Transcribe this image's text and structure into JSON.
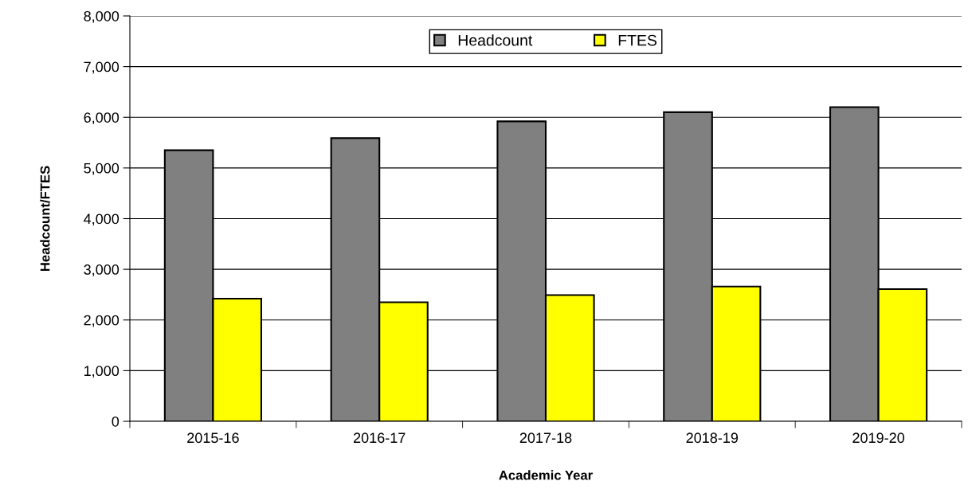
{
  "chart_data": {
    "type": "bar",
    "xlabel": "Academic Year",
    "ylabel": "Headcount/FTES",
    "categories": [
      "2015-16",
      "2016-17",
      "2017-18",
      "2018-19",
      "2019-20"
    ],
    "series": [
      {
        "name": "Headcount",
        "color": "#808080",
        "values": [
          5350,
          5590,
          5920,
          6100,
          6200
        ]
      },
      {
        "name": "FTES",
        "color": "#ffff00",
        "values": [
          2420,
          2350,
          2490,
          2660,
          2610
        ]
      }
    ],
    "ylim": [
      0,
      8000
    ],
    "yticks": [
      {
        "value": 0,
        "label": "0"
      },
      {
        "value": 1000,
        "label": "1,000"
      },
      {
        "value": 2000,
        "label": "2,000"
      },
      {
        "value": 3000,
        "label": "3,000"
      },
      {
        "value": 4000,
        "label": "4,000"
      },
      {
        "value": 5000,
        "label": "5,000"
      },
      {
        "value": 6000,
        "label": "6,000"
      },
      {
        "value": 7000,
        "label": "7,000"
      },
      {
        "value": 8000,
        "label": "8,000"
      }
    ],
    "grid": "y",
    "legend": "top"
  }
}
